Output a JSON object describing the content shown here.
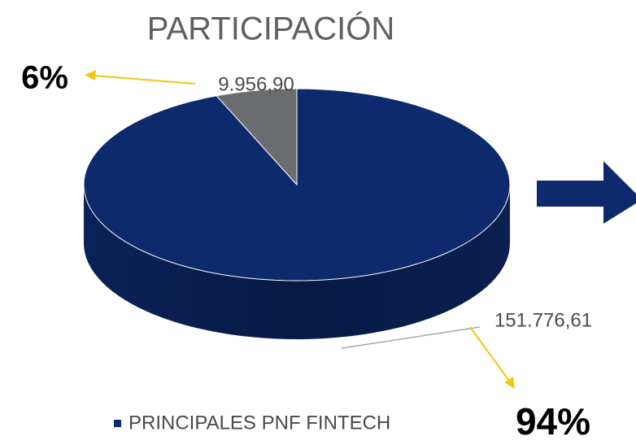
{
  "chart_data": {
    "type": "pie",
    "title": "PARTICIPACIÓN",
    "categories": [
      "PRINCIPALES PNF FINTECH",
      null
    ],
    "values": [
      151776.61,
      9956.9
    ],
    "value_labels": [
      "151.776,61",
      "9.956,90"
    ],
    "annotations": [
      "94%",
      "6%"
    ],
    "colors": [
      "#0c2a6c",
      "#6b6c6f"
    ],
    "legend": "bottom"
  }
}
